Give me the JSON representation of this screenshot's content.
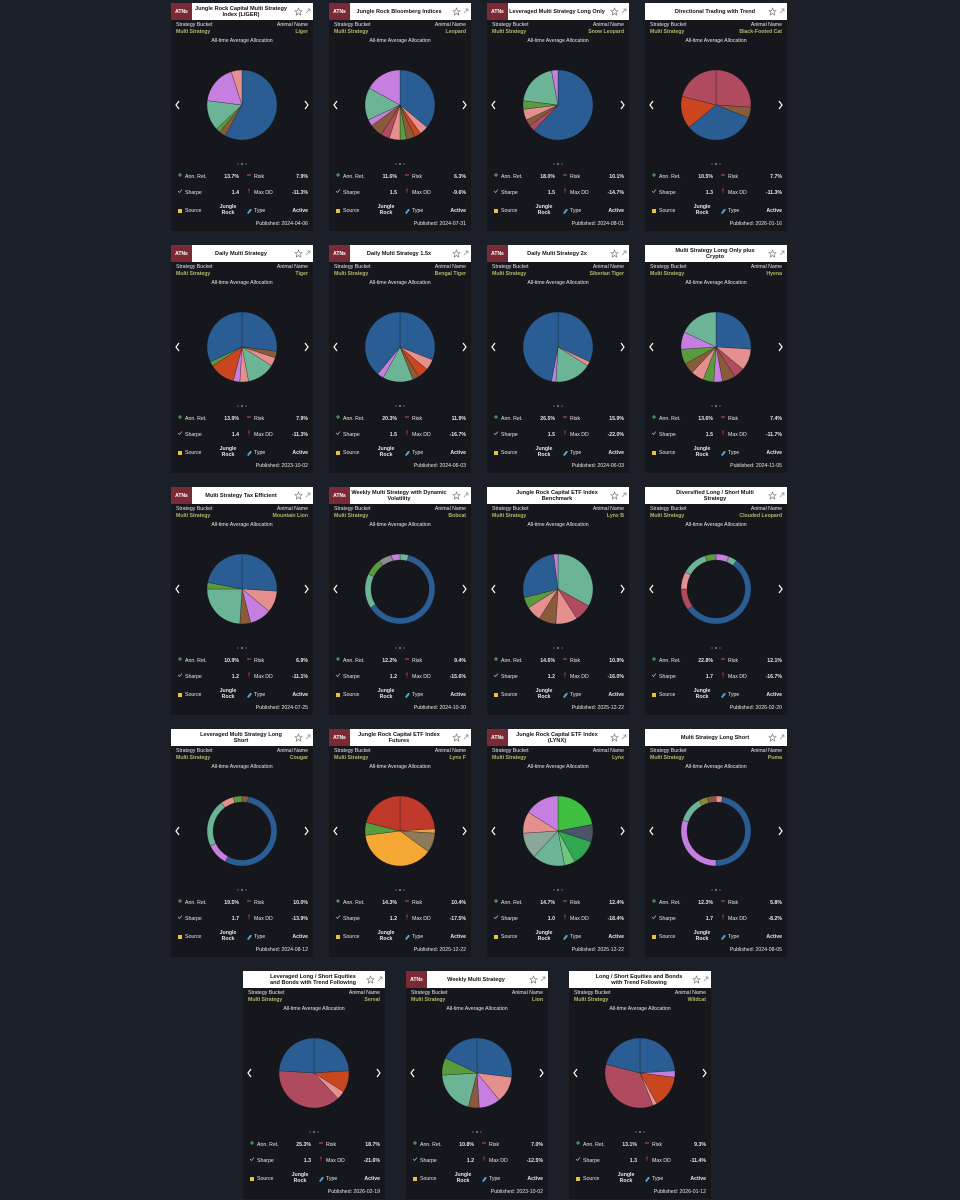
{
  "labels": {
    "strategy_bucket": "Strategy Bucket",
    "animal_name": "Animal Name",
    "allocation": "All-time Average Allocation",
    "ann_ret": "Ann. Ret.",
    "risk": "Risk",
    "sharpe": "Sharpe",
    "max_dd": "Max DD",
    "source": "Source",
    "type": "Type",
    "logo": "ATNs"
  },
  "cards": [
    {
      "title": "Jungle Rock Capital Multi Strategy Index (LIGER)",
      "logo": true,
      "bucket": "Multi Strategy",
      "animal": "Liger",
      "ann_ret": "13.7%",
      "risk": "7.9%",
      "sharpe": "1.4",
      "max_dd": "-11.3%",
      "source": "Jungle Rock",
      "type": "Active",
      "published": "Published: 2024-04-06",
      "allocation": {
        "donut": false,
        "values": [
          58,
          3,
          2,
          14,
          18,
          5
        ],
        "colors": [
          "#2a5d93",
          "#8a5b3b",
          "#5a9b3e",
          "#6bb596",
          "#c67fe0",
          "#e58f8f"
        ]
      }
    },
    {
      "title": "Jungle Rock Bloomberg Indices",
      "logo": true,
      "bucket": "Multi Strategy",
      "animal": "Leopard",
      "ann_ret": "11.6%",
      "risk": "6.3%",
      "sharpe": "1.5",
      "max_dd": "-9.6%",
      "source": "Jungle Rock",
      "type": "Active",
      "published": "Published: 2024-07-31",
      "allocation": {
        "donut": false,
        "values": [
          36,
          4,
          3,
          4,
          3,
          5,
          4,
          6,
          3,
          15,
          17
        ],
        "colors": [
          "#2a5d93",
          "#e58f8f",
          "#c9461f",
          "#8a5b3b",
          "#5a9b3e",
          "#e58f8f",
          "#b04a5e",
          "#8a5b3b",
          "#c67fe0",
          "#6bb596",
          "#c67fe0"
        ]
      }
    },
    {
      "title": "Leveraged Multi Strategy Long Only",
      "logo": true,
      "bucket": "Multi Strategy",
      "animal": "Snow Leopard",
      "ann_ret": "18.0%",
      "risk": "10.1%",
      "sharpe": "1.5",
      "max_dd": "-14.7%",
      "source": "Jungle Rock",
      "type": "Active",
      "published": "Published: 2024-08-01",
      "allocation": {
        "donut": false,
        "values": [
          62,
          3,
          3,
          5,
          4,
          20,
          3
        ],
        "colors": [
          "#2a5d93",
          "#b04a5e",
          "#8a5b3b",
          "#e58f8f",
          "#5a9b3e",
          "#6bb596",
          "#c67fe0"
        ]
      }
    },
    {
      "title": "Directional Trading with Trend",
      "logo": false,
      "bucket": "Multi Strategy",
      "animal": "Black-Footed Cat",
      "ann_ret": "10.5%",
      "risk": "7.7%",
      "sharpe": "1.3",
      "max_dd": "-11.3%",
      "source": "Jungle Rock",
      "type": "Active",
      "published": "Published: 2026-01-16",
      "allocation": {
        "donut": false,
        "values": [
          26,
          5,
          33,
          15,
          21
        ],
        "colors": [
          "#b04a5e",
          "#8a5b3b",
          "#2a5d93",
          "#c9461f",
          "#b04a5e"
        ]
      }
    },
    {
      "title": "Daily Multi Strategy",
      "logo": true,
      "bucket": "Multi Strategy",
      "animal": "Tiger",
      "ann_ret": "13.9%",
      "risk": "7.9%",
      "sharpe": "1.4",
      "max_dd": "-11.3%",
      "source": "Jungle Rock",
      "type": "Active",
      "published": "Published: 2023-10-02",
      "allocation": {
        "donut": false,
        "values": [
          27,
          3,
          4,
          13,
          4,
          3,
          12,
          2,
          32
        ],
        "colors": [
          "#2a5d93",
          "#8a5b3b",
          "#e58f8f",
          "#6bb596",
          "#e58f8f",
          "#c67fe0",
          "#c9461f",
          "#5a9b3e",
          "#2a5d93"
        ]
      }
    },
    {
      "title": "Daily Multi Strategy 1.5x",
      "logo": true,
      "bucket": "Multi Strategy",
      "animal": "Bengal Tiger",
      "ann_ret": "20.3%",
      "risk": "11.9%",
      "sharpe": "1.5",
      "max_dd": "-16.7%",
      "source": "Jungle Rock",
      "type": "Active",
      "published": "Published: 2024-06-03",
      "allocation": {
        "donut": false,
        "values": [
          31,
          5,
          5,
          3,
          14,
          3,
          39
        ],
        "colors": [
          "#2a5d93",
          "#e58f8f",
          "#c9461f",
          "#8a5b3b",
          "#6bb596",
          "#c67fe0",
          "#2a5d93"
        ]
      }
    },
    {
      "title": "Daily Multi Strategy 2x",
      "logo": true,
      "bucket": "Multi Strategy",
      "animal": "Siberian Tiger",
      "ann_ret": "26.5%",
      "risk": "15.9%",
      "sharpe": "1.5",
      "max_dd": "-22.0%",
      "source": "Jungle Rock",
      "type": "Active",
      "published": "Published: 2024-06-03",
      "allocation": {
        "donut": false,
        "values": [
          32,
          2,
          17,
          2,
          47
        ],
        "colors": [
          "#2a5d93",
          "#e58f8f",
          "#6bb596",
          "#c67fe0",
          "#2a5d93"
        ]
      }
    },
    {
      "title": "Multi Strategy Long Only plus Crypto",
      "logo": false,
      "bucket": "Multi Strategy",
      "animal": "Hyena",
      "ann_ret": "13.6%",
      "risk": "7.4%",
      "sharpe": "1.5",
      "max_dd": "-11.7%",
      "source": "Jungle Rock",
      "type": "Active",
      "published": "Published: 2024-11-05",
      "allocation": {
        "donut": false,
        "values": [
          26,
          10,
          5,
          6,
          4,
          5,
          6,
          5,
          7,
          8,
          18
        ],
        "colors": [
          "#2a5d93",
          "#e58f8f",
          "#b04a5e",
          "#8a5b3b",
          "#c67fe0",
          "#5a9b3e",
          "#e58f8f",
          "#8a5b3b",
          "#5a9b3e",
          "#c67fe0",
          "#6bb596"
        ]
      }
    },
    {
      "title": "Multi Strategy Tax Efficient",
      "logo": true,
      "bucket": "Multi Strategy",
      "animal": "Mountain Lion",
      "ann_ret": "10.9%",
      "risk": "6.9%",
      "sharpe": "1.2",
      "max_dd": "-11.1%",
      "source": "Jungle Rock",
      "type": "Active",
      "published": "Published: 2024-07-25",
      "allocation": {
        "donut": false,
        "values": [
          26,
          10,
          10,
          5,
          24,
          3,
          22
        ],
        "colors": [
          "#2a5d93",
          "#e58f8f",
          "#c67fe0",
          "#8a5b3b",
          "#6bb596",
          "#5a9b3e",
          "#2a5d93"
        ]
      }
    },
    {
      "title": "Weekly Multi Strategy with Dynamic Volatility",
      "logo": true,
      "bucket": "Multi Strategy",
      "animal": "Bobcat",
      "ann_ret": "12.2%",
      "risk": "9.4%",
      "sharpe": "1.2",
      "max_dd": "-15.6%",
      "source": "Jungle Rock",
      "type": "Active",
      "published": "Published: 2024-10-30",
      "allocation": {
        "donut": true,
        "values": [
          4,
          62,
          16,
          8,
          6,
          4
        ],
        "colors": [
          "#6bb596",
          "#2a5d93",
          "#6bb596",
          "#5a9b3e",
          "#8c8c8c",
          "#c67fe0"
        ]
      }
    },
    {
      "title": "Jungle Rock Capital ETF Index Benchmark",
      "logo": false,
      "bucket": "Multi Strategy",
      "animal": "Lynx B",
      "ann_ret": "14.6%",
      "risk": "10.9%",
      "sharpe": "1.2",
      "max_dd": "-16.0%",
      "source": "Jungle Rock",
      "type": "Active",
      "published": "Published: 2025-12-22",
      "allocation": {
        "donut": false,
        "values": [
          33,
          8,
          10,
          8,
          7,
          5,
          27,
          2
        ],
        "colors": [
          "#6bb596",
          "#b04a5e",
          "#e58f8f",
          "#8a5b3b",
          "#e58f8f",
          "#5a9b3e",
          "#2a5d93",
          "#c67fe0"
        ]
      }
    },
    {
      "title": "Diversified Long / Short Multi Strategy",
      "logo": false,
      "bucket": "Multi Strategy",
      "animal": "Clouded Leopard",
      "ann_ret": "22.8%",
      "risk": "12.1%",
      "sharpe": "1.7",
      "max_dd": "-16.7%",
      "source": "Jungle Rock",
      "type": "Active",
      "published": "Published: 2026-02-20",
      "allocation": {
        "donut": true,
        "values": [
          6,
          4,
          55,
          10,
          8,
          12,
          5
        ],
        "colors": [
          "#c67fe0",
          "#6bb596",
          "#2a5d93",
          "#b04a5e",
          "#e58f8f",
          "#6bb596",
          "#5a9b3e"
        ]
      }
    },
    {
      "title": "Leveraged Multi Strategy Long Short",
      "logo": false,
      "bucket": "Multi Strategy",
      "animal": "Cougar",
      "ann_ret": "19.5%",
      "risk": "10.0%",
      "sharpe": "1.7",
      "max_dd": "-13.9%",
      "source": "Jungle Rock",
      "type": "Active",
      "published": "Published: 2024-08-12",
      "allocation": {
        "donut": true,
        "values": [
          3,
          55,
          10,
          22,
          6,
          4
        ],
        "colors": [
          "#8a5b3b",
          "#2a5d93",
          "#c67fe0",
          "#6bb596",
          "#e58f8f",
          "#5a9b3e"
        ]
      }
    },
    {
      "title": "Jungle Rock Capital ETF Index Futures",
      "logo": true,
      "bucket": "Multi Strategy",
      "animal": "Lynx F",
      "ann_ret": "14.3%",
      "risk": "10.4%",
      "sharpe": "1.2",
      "max_dd": "-17.5%",
      "source": "Jungle Rock",
      "type": "Active",
      "published": "Published: 2025-12-22",
      "allocation": {
        "donut": false,
        "values": [
          24,
          2,
          9,
          38,
          6,
          21
        ],
        "colors": [
          "#c0392b",
          "#e5a04a",
          "#8c7a5a",
          "#f5a833",
          "#5a9b3e",
          "#c0392b"
        ]
      }
    },
    {
      "title": "Jungle Rock Capital ETF Index (LYNX)",
      "logo": true,
      "bucket": "Multi Strategy",
      "animal": "Lynx",
      "ann_ret": "14.7%",
      "risk": "12.4%",
      "sharpe": "1.0",
      "max_dd": "-18.4%",
      "source": "Jungle Rock",
      "type": "Active",
      "published": "Published: 2025-12-22",
      "allocation": {
        "donut": false,
        "values": [
          22,
          8,
          12,
          5,
          15,
          12,
          10,
          16
        ],
        "colors": [
          "#3fbf3f",
          "#4a5568",
          "#2fa84f",
          "#6ec77e",
          "#6bb596",
          "#8aa89a",
          "#e58f8f",
          "#c67fe0"
        ]
      }
    },
    {
      "title": "Multi Strategy Long Short",
      "logo": false,
      "bucket": "Multi Strategy",
      "animal": "Puma",
      "ann_ret": "12.3%",
      "risk": "5.8%",
      "sharpe": "1.7",
      "max_dd": "-8.2%",
      "source": "Jungle Rock",
      "type": "Active",
      "published": "Published: 2024-08-05",
      "allocation": {
        "donut": true,
        "values": [
          3,
          47,
          30,
          12,
          4,
          4
        ],
        "colors": [
          "#e58f8f",
          "#2a5d93",
          "#c67fe0",
          "#6bb596",
          "#8a8a3a",
          "#8a5b3b"
        ]
      }
    },
    {
      "title": "Leveraged Long / Short Equities and Bonds with Trend Following",
      "logo": false,
      "bucket": "Multi Strategy",
      "animal": "Serval",
      "ann_ret": "25.3%",
      "risk": "18.7%",
      "sharpe": "1.3",
      "max_dd": "-21.6%",
      "source": "Jungle Rock",
      "type": "Active",
      "published": "Published: 2026-02-19",
      "allocation": {
        "donut": false,
        "values": [
          24,
          10,
          4,
          38,
          24
        ],
        "colors": [
          "#2a5d93",
          "#c9461f",
          "#e58f8f",
          "#b04a5e",
          "#2a5d93"
        ]
      }
    },
    {
      "title": "Weekly Multi Strategy",
      "logo": true,
      "bucket": "Multi Strategy",
      "animal": "Lion",
      "ann_ret": "10.8%",
      "risk": "7.0%",
      "sharpe": "1.2",
      "max_dd": "-12.5%",
      "source": "Jungle Rock",
      "type": "Active",
      "published": "Published: 2023-10-02",
      "allocation": {
        "donut": false,
        "values": [
          27,
          12,
          10,
          5,
          20,
          8,
          18
        ],
        "colors": [
          "#2a5d93",
          "#e58f8f",
          "#c67fe0",
          "#8a5b3b",
          "#6bb596",
          "#5a9b3e",
          "#2a5d93"
        ]
      }
    },
    {
      "title": "Long / Short Equities and Bonds with Trend Following",
      "logo": false,
      "bucket": "Multi Strategy",
      "animal": "Wildcat",
      "ann_ret": "13.1%",
      "risk": "9.3%",
      "sharpe": "1.3",
      "max_dd": "-11.4%",
      "source": "Jungle Rock",
      "type": "Active",
      "published": "Published: 2026-01-12",
      "allocation": {
        "donut": false,
        "values": [
          24,
          3,
          15,
          2,
          35,
          21
        ],
        "colors": [
          "#2a5d93",
          "#c67fe0",
          "#c9461f",
          "#e58f8f",
          "#b04a5e",
          "#2a5d93"
        ]
      }
    }
  ]
}
